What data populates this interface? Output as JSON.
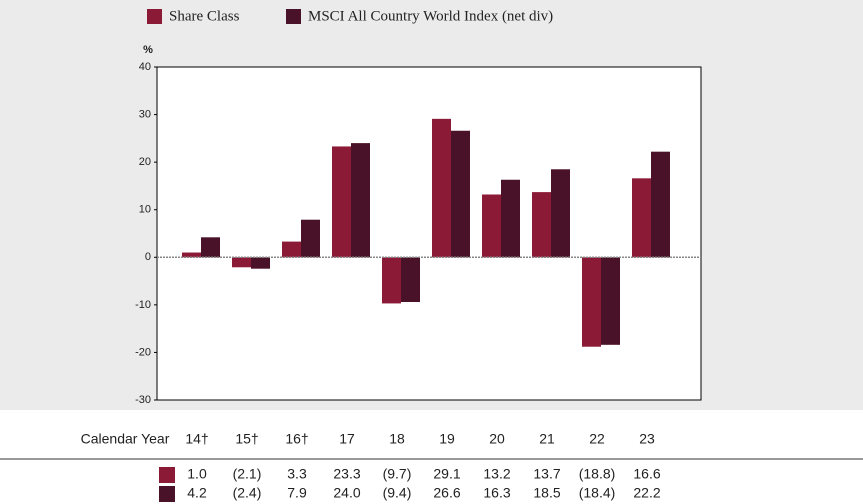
{
  "chart_data": {
    "type": "bar",
    "y_label": "%",
    "categories": [
      "14†",
      "15†",
      "16†",
      "17",
      "18",
      "19",
      "20",
      "21",
      "22",
      "23"
    ],
    "series": [
      {
        "name": "Share Class",
        "color": "#8b1a36",
        "values": [
          1.0,
          -2.1,
          3.3,
          23.3,
          -9.7,
          29.1,
          13.2,
          13.7,
          -18.8,
          16.6
        ],
        "value_labels": [
          "1.0",
          "(2.1)",
          "3.3",
          "23.3",
          "(9.7)",
          "29.1",
          "13.2",
          "13.7",
          "(18.8)",
          "16.6"
        ]
      },
      {
        "name": "MSCI All Country World Index (net div)",
        "color": "#4a1228",
        "values": [
          4.2,
          -2.4,
          7.9,
          24.0,
          -9.4,
          26.6,
          16.3,
          18.5,
          -18.4,
          22.2
        ],
        "value_labels": [
          "4.2",
          "(2.4)",
          "7.9",
          "24.0",
          "(9.4)",
          "26.6",
          "16.3",
          "18.5",
          "(18.4)",
          "22.2"
        ]
      }
    ],
    "table_header": "Calendar Year",
    "ylim": [
      -30,
      40
    ],
    "yticks": [
      40,
      30,
      20,
      10,
      0,
      -10,
      -20,
      -30
    ]
  }
}
